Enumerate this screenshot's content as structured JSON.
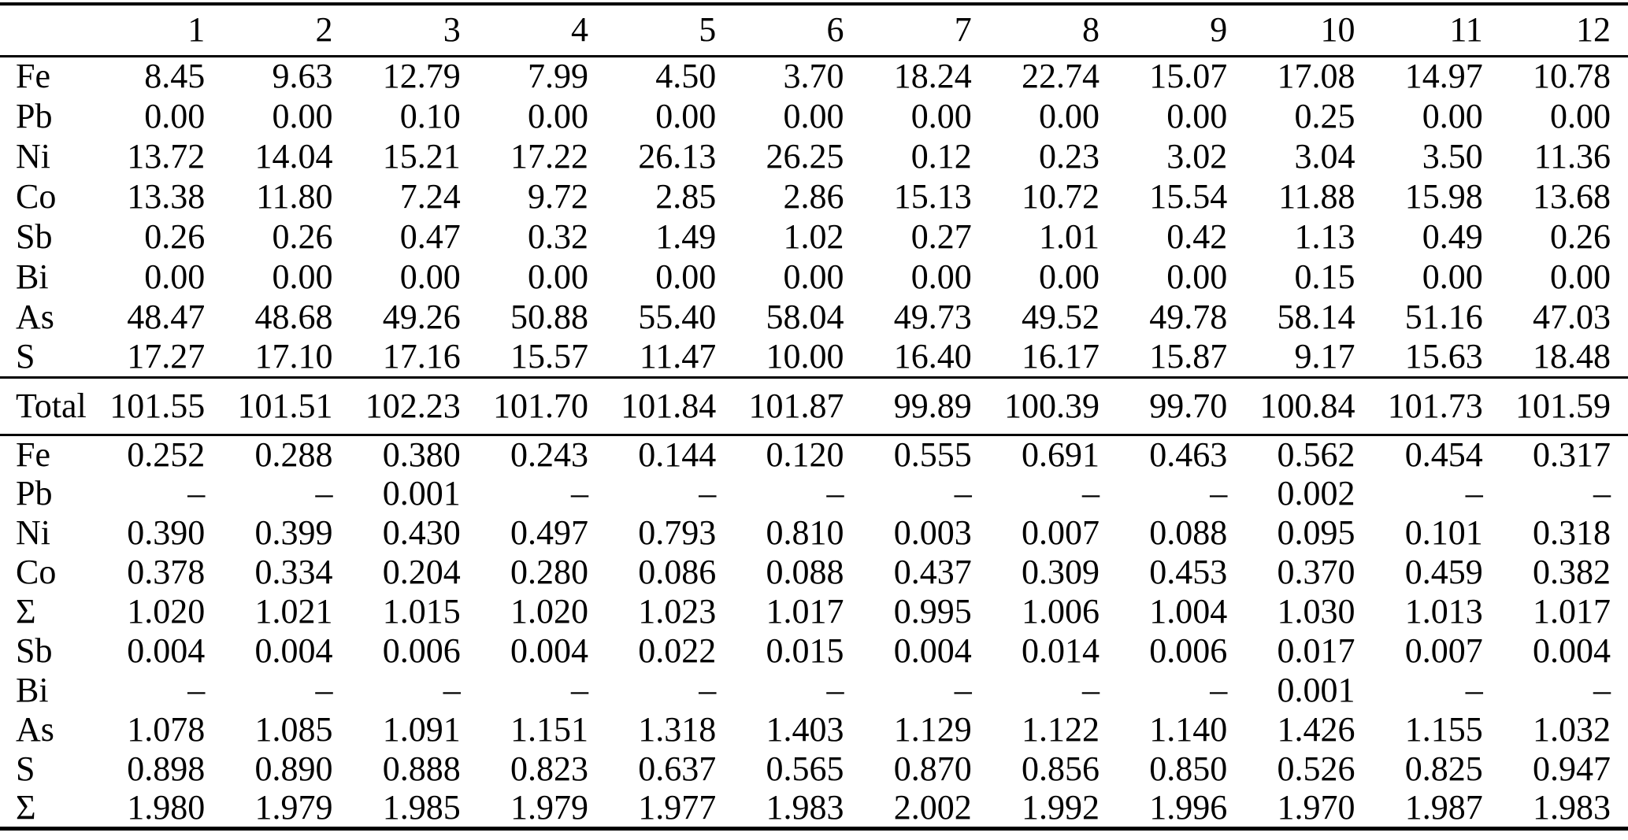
{
  "table": {
    "header": {
      "row_label": "",
      "columns": [
        "1",
        "2",
        "3",
        "4",
        "5",
        "6",
        "7",
        "8",
        "9",
        "10",
        "11",
        "12"
      ]
    },
    "wt_percent_rows": [
      {
        "label": "Fe",
        "values": [
          "8.45",
          "9.63",
          "12.79",
          "7.99",
          "4.50",
          "3.70",
          "18.24",
          "22.74",
          "15.07",
          "17.08",
          "14.97",
          "10.78"
        ]
      },
      {
        "label": "Pb",
        "values": [
          "0.00",
          "0.00",
          "0.10",
          "0.00",
          "0.00",
          "0.00",
          "0.00",
          "0.00",
          "0.00",
          "0.25",
          "0.00",
          "0.00"
        ]
      },
      {
        "label": "Ni",
        "values": [
          "13.72",
          "14.04",
          "15.21",
          "17.22",
          "26.13",
          "26.25",
          "0.12",
          "0.23",
          "3.02",
          "3.04",
          "3.50",
          "11.36"
        ]
      },
      {
        "label": "Co",
        "values": [
          "13.38",
          "11.80",
          "7.24",
          "9.72",
          "2.85",
          "2.86",
          "15.13",
          "10.72",
          "15.54",
          "11.88",
          "15.98",
          "13.68"
        ]
      },
      {
        "label": "Sb",
        "values": [
          "0.26",
          "0.26",
          "0.47",
          "0.32",
          "1.49",
          "1.02",
          "0.27",
          "1.01",
          "0.42",
          "1.13",
          "0.49",
          "0.26"
        ]
      },
      {
        "label": "Bi",
        "values": [
          "0.00",
          "0.00",
          "0.00",
          "0.00",
          "0.00",
          "0.00",
          "0.00",
          "0.00",
          "0.00",
          "0.15",
          "0.00",
          "0.00"
        ]
      },
      {
        "label": "As",
        "values": [
          "48.47",
          "48.68",
          "49.26",
          "50.88",
          "55.40",
          "58.04",
          "49.73",
          "49.52",
          "49.78",
          "58.14",
          "51.16",
          "47.03"
        ]
      },
      {
        "label": "S",
        "values": [
          "17.27",
          "17.10",
          "17.16",
          "15.57",
          "11.47",
          "10.00",
          "16.40",
          "16.17",
          "15.87",
          "9.17",
          "15.63",
          "18.48"
        ]
      }
    ],
    "total_row": {
      "label": "Total",
      "values": [
        "101.55",
        "101.51",
        "102.23",
        "101.70",
        "101.84",
        "101.87",
        "99.89",
        "100.39",
        "99.70",
        "100.84",
        "101.73",
        "101.59"
      ]
    },
    "apfu_rows": [
      {
        "label": "Fe",
        "values": [
          "0.252",
          "0.288",
          "0.380",
          "0.243",
          "0.144",
          "0.120",
          "0.555",
          "0.691",
          "0.463",
          "0.562",
          "0.454",
          "0.317"
        ]
      },
      {
        "label": "Pb",
        "values": [
          "–",
          "–",
          "0.001",
          "–",
          "–",
          "–",
          "–",
          "–",
          "–",
          "0.002",
          "–",
          "–"
        ]
      },
      {
        "label": "Ni",
        "values": [
          "0.390",
          "0.399",
          "0.430",
          "0.497",
          "0.793",
          "0.810",
          "0.003",
          "0.007",
          "0.088",
          "0.095",
          "0.101",
          "0.318"
        ]
      },
      {
        "label": "Co",
        "values": [
          "0.378",
          "0.334",
          "0.204",
          "0.280",
          "0.086",
          "0.088",
          "0.437",
          "0.309",
          "0.453",
          "0.370",
          "0.459",
          "0.382"
        ]
      },
      {
        "label": "Σ",
        "values": [
          "1.020",
          "1.021",
          "1.015",
          "1.020",
          "1.023",
          "1.017",
          "0.995",
          "1.006",
          "1.004",
          "1.030",
          "1.013",
          "1.017"
        ]
      },
      {
        "label": "Sb",
        "values": [
          "0.004",
          "0.004",
          "0.006",
          "0.004",
          "0.022",
          "0.015",
          "0.004",
          "0.014",
          "0.006",
          "0.017",
          "0.007",
          "0.004"
        ]
      },
      {
        "label": "Bi",
        "values": [
          "–",
          "–",
          "–",
          "–",
          "–",
          "–",
          "–",
          "–",
          "–",
          "0.001",
          "–",
          "–"
        ]
      },
      {
        "label": "As",
        "values": [
          "1.078",
          "1.085",
          "1.091",
          "1.151",
          "1.318",
          "1.403",
          "1.129",
          "1.122",
          "1.140",
          "1.426",
          "1.155",
          "1.032"
        ]
      },
      {
        "label": "S",
        "values": [
          "0.898",
          "0.890",
          "0.888",
          "0.823",
          "0.637",
          "0.565",
          "0.870",
          "0.856",
          "0.850",
          "0.526",
          "0.825",
          "0.947"
        ]
      },
      {
        "label": "Σ",
        "values": [
          "1.980",
          "1.979",
          "1.985",
          "1.979",
          "1.977",
          "1.983",
          "2.002",
          "1.992",
          "1.996",
          "1.970",
          "1.987",
          "1.983"
        ]
      }
    ],
    "colors": {
      "text": "#000000",
      "background": "#ffffff",
      "rule": "#000000"
    }
  }
}
